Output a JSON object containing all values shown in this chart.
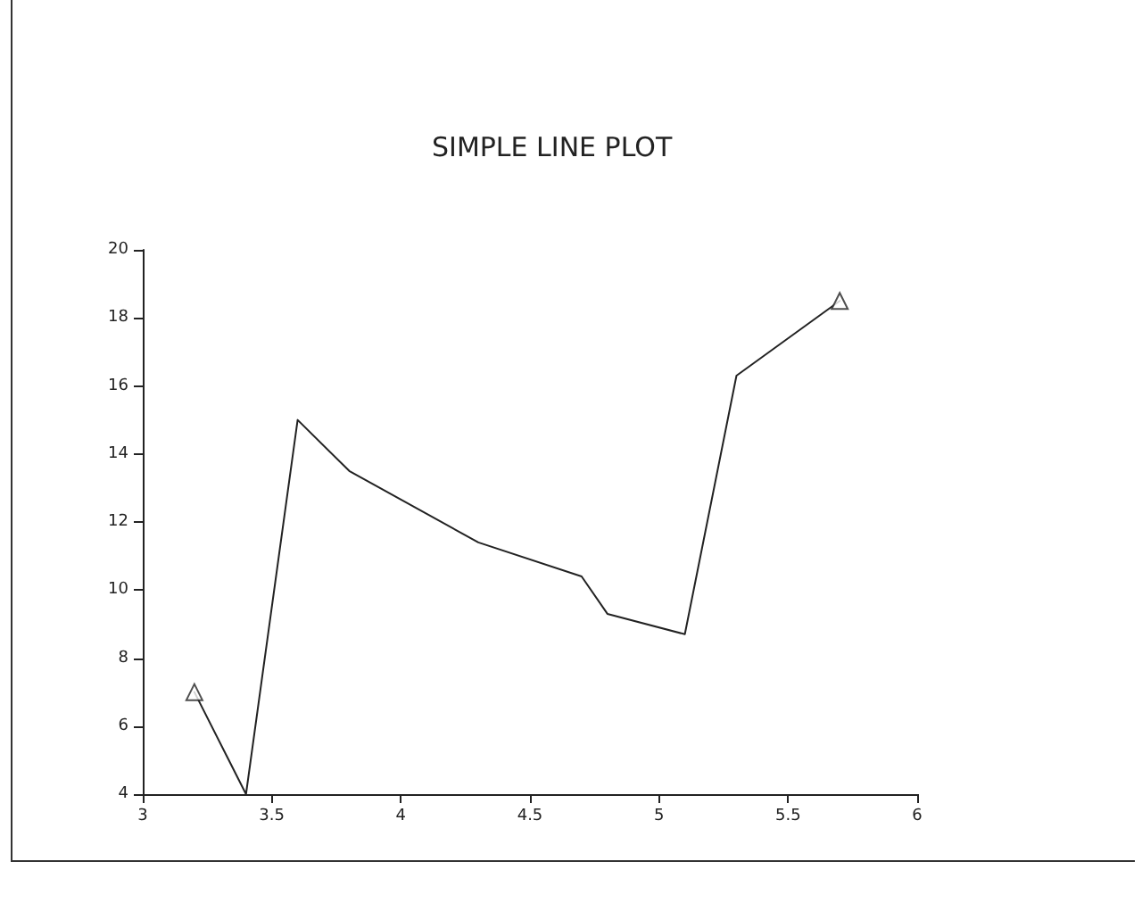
{
  "chart_data": {
    "type": "line",
    "title": "SIMPLE LINE PLOT",
    "series": [
      {
        "color": "#222222",
        "marker": "none",
        "line_style": "solid",
        "x": [
          3.2,
          3.4,
          3.6,
          3.8,
          4.3,
          4.7,
          4.8,
          5.1,
          5.3,
          5.7
        ],
        "values": [
          7,
          4,
          15,
          13.5,
          11.4,
          10.4,
          9.3,
          8.7,
          16.3,
          18.5
        ]
      },
      {
        "type": "scatter",
        "color": "#222222",
        "marker": "triangle",
        "x": [
          3.2,
          5.7
        ],
        "values": [
          7,
          18.5
        ]
      }
    ],
    "xlim": [
      3,
      6
    ],
    "xticks": [
      3,
      3.5,
      4,
      4.5,
      5,
      5.5,
      6
    ],
    "ylim": [
      4,
      20
    ],
    "yticks": [
      4,
      6,
      8,
      10,
      12,
      14,
      16,
      18,
      20
    ],
    "grid": false
  }
}
